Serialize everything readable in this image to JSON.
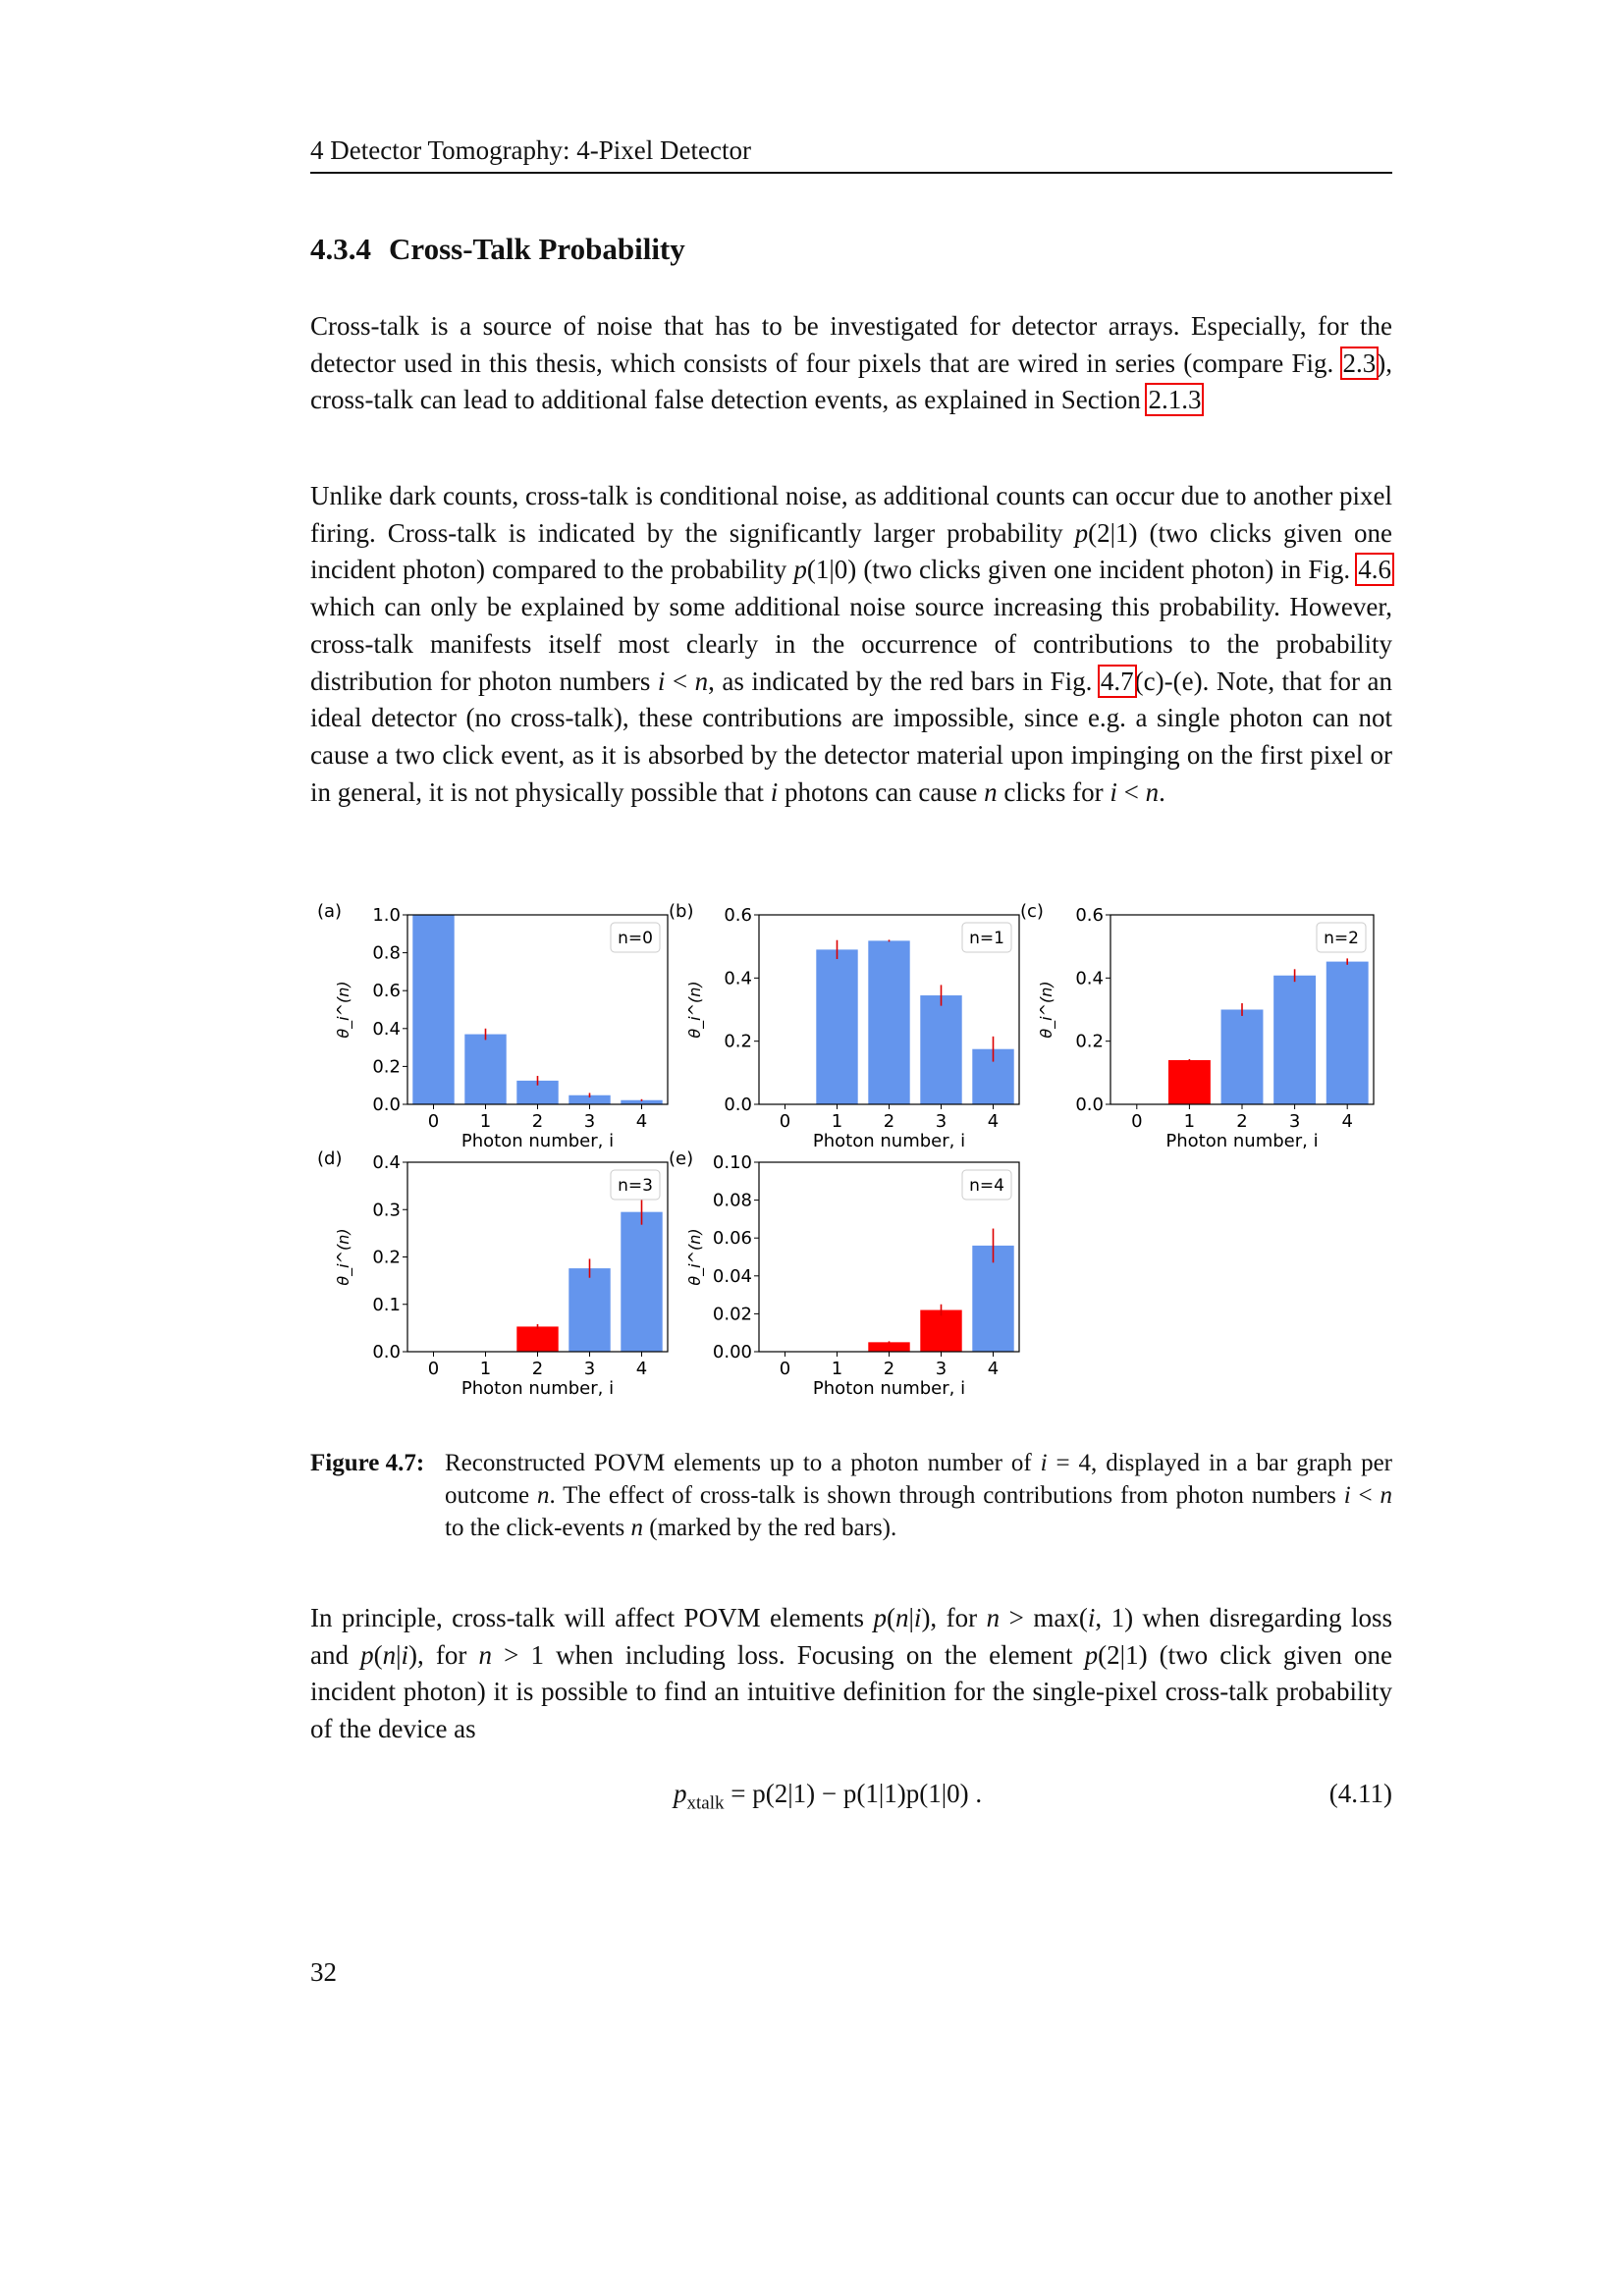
{
  "running_head": "4  Detector Tomography: 4-Pixel Detector",
  "section": {
    "number": "4.3.4",
    "title": "Cross-Talk Probability"
  },
  "paragraphs": [
    [
      {
        "t": "Cross-talk is a source of noise that has to be investigated for detector arrays. Especially, for the detector used in this thesis, which consists of four pixels that are wired in series (compare Fig. "
      },
      {
        "t": "2.3",
        "k": "ref"
      },
      {
        "t": "), cross-talk can lead to additional false detection events, as explained in Section "
      },
      {
        "t": "2.1.3",
        "k": "ref"
      }
    ],
    [
      {
        "t": "Unlike dark counts, cross-talk is conditional noise, as additional counts can occur due to another pixel firing. Cross-talk is indicated by the significantly larger probability "
      },
      {
        "t": "p",
        "k": "m"
      },
      {
        "t": "(2|1) (two clicks given one incident photon) compared to the probability "
      },
      {
        "t": "p",
        "k": "m"
      },
      {
        "t": "(1|0) (two clicks given one incident photon) in Fig. "
      },
      {
        "t": "4.6",
        "k": "ref"
      },
      {
        "t": " which can only be explained by some additional noise source increasing this probability. However, cross-talk manifests itself most clearly in the occurrence of contributions to the probability distribution for photon numbers "
      },
      {
        "t": "i",
        "k": "m"
      },
      {
        "t": " < "
      },
      {
        "t": "n",
        "k": "m"
      },
      {
        "t": ", as indicated by the red bars in Fig. "
      },
      {
        "t": "4.7",
        "k": "ref"
      },
      {
        "t": "(c)-(e). Note, that for an ideal detector (no cross-talk), these contributions are impossible, since e.g. a single photon can not cause a two click event, as it is absorbed by the detector material upon impinging on the first pixel or in general, it is not physically possible that "
      },
      {
        "t": "i",
        "k": "m"
      },
      {
        "t": " photons can cause "
      },
      {
        "t": "n",
        "k": "m"
      },
      {
        "t": " clicks for "
      },
      {
        "t": "i",
        "k": "m"
      },
      {
        "t": " < "
      },
      {
        "t": "n",
        "k": "m"
      },
      {
        "t": "."
      }
    ],
    [
      {
        "t": "In principle, cross-talk will affect POVM elements "
      },
      {
        "t": "p",
        "k": "m"
      },
      {
        "t": "("
      },
      {
        "t": "n",
        "k": "m"
      },
      {
        "t": "|"
      },
      {
        "t": "i",
        "k": "m"
      },
      {
        "t": "), for "
      },
      {
        "t": "n",
        "k": "m"
      },
      {
        "t": " > max("
      },
      {
        "t": "i",
        "k": "m"
      },
      {
        "t": ", 1) when disregarding loss and "
      },
      {
        "t": "p",
        "k": "m"
      },
      {
        "t": "("
      },
      {
        "t": "n",
        "k": "m"
      },
      {
        "t": "|"
      },
      {
        "t": "i",
        "k": "m"
      },
      {
        "t": "), for "
      },
      {
        "t": "n",
        "k": "m"
      },
      {
        "t": " > 1 when including loss. Focusing on the element "
      },
      {
        "t": "p",
        "k": "m"
      },
      {
        "t": "(2|1) (two click given one incident photon) it is possible to find an intuitive definition for the single-pixel cross-talk probability of the device as"
      }
    ]
  ],
  "caption": {
    "label": "Figure 4.7:",
    "segments": [
      {
        "t": "Reconstructed POVM elements up to a photon number of "
      },
      {
        "t": "i",
        "k": "m"
      },
      {
        "t": " = 4, displayed in a bar graph per outcome "
      },
      {
        "t": "n",
        "k": "m"
      },
      {
        "t": ". The effect of cross-talk is shown through contributions from photon numbers "
      },
      {
        "t": "i",
        "k": "m"
      },
      {
        "t": " < "
      },
      {
        "t": "n",
        "k": "m"
      },
      {
        "t": " to the click-events "
      },
      {
        "t": "n",
        "k": "m"
      },
      {
        "t": " (marked by the red bars)."
      }
    ]
  },
  "equation": {
    "lhs": "p",
    "sub": "xtalk",
    "rhs": " = p(2|1) − p(1|1)p(1|0) .",
    "number": "(4.11)"
  },
  "page_number": "32",
  "colors": {
    "normal_bar": "#6495ED",
    "crosstalk_bar": "#FF0000",
    "error_bar": "#DD0000",
    "ref_box": "#EE0000"
  },
  "chart_data": [
    {
      "type": "bar",
      "panel": "(a)",
      "legend": "n=0",
      "legend_position": "top-right",
      "xlabel": "Photon number, i",
      "ylabel": "θ_i^(n)",
      "categories": [
        "0",
        "1",
        "2",
        "3",
        "4"
      ],
      "values": [
        1.0,
        0.37,
        0.125,
        0.048,
        0.022
      ],
      "errors": [
        0,
        0.03,
        0.025,
        0.012,
        0.005
      ],
      "crosstalk": [
        false,
        false,
        false,
        false,
        false
      ],
      "ylim": [
        0,
        1.0
      ],
      "yticks": [
        "0.0",
        "0.2",
        "0.4",
        "0.6",
        "0.8",
        "1.0"
      ],
      "ytick_values": [
        0,
        0.2,
        0.4,
        0.6,
        0.8,
        1.0
      ]
    },
    {
      "type": "bar",
      "panel": "(b)",
      "legend": "n=1",
      "legend_position": "top-right",
      "xlabel": "Photon number, i",
      "ylabel": "θ_i^(n)",
      "categories": [
        "0",
        "1",
        "2",
        "3",
        "4"
      ],
      "values": [
        0,
        0.49,
        0.518,
        0.345,
        0.175
      ],
      "errors": [
        0,
        0.03,
        0.003,
        0.033,
        0.04
      ],
      "crosstalk": [
        false,
        false,
        false,
        false,
        false
      ],
      "ylim": [
        0,
        0.6
      ],
      "yticks": [
        "0.0",
        "0.2",
        "0.4",
        "0.6"
      ],
      "ytick_values": [
        0,
        0.2,
        0.4,
        0.6
      ]
    },
    {
      "type": "bar",
      "panel": "(c)",
      "legend": "n=2",
      "legend_position": "top-right",
      "xlabel": "Photon number, i",
      "ylabel": "θ_i^(n)",
      "categories": [
        "0",
        "1",
        "2",
        "3",
        "4"
      ],
      "values": [
        0,
        0.14,
        0.3,
        0.408,
        0.452
      ],
      "errors": [
        0,
        0.003,
        0.02,
        0.02,
        0.01
      ],
      "crosstalk": [
        false,
        true,
        false,
        false,
        false
      ],
      "ylim": [
        0,
        0.6
      ],
      "yticks": [
        "0.0",
        "0.2",
        "0.4",
        "0.6"
      ],
      "ytick_values": [
        0,
        0.2,
        0.4,
        0.6
      ]
    },
    {
      "type": "bar",
      "panel": "(d)",
      "legend": "n=3",
      "legend_position": "top-right",
      "xlabel": "Photon number, i",
      "ylabel": "θ_i^(n)",
      "categories": [
        "0",
        "1",
        "2",
        "3",
        "4"
      ],
      "values": [
        0,
        0,
        0.053,
        0.176,
        0.295
      ],
      "errors": [
        0,
        0,
        0.005,
        0.02,
        0.027
      ],
      "crosstalk": [
        false,
        false,
        true,
        false,
        false
      ],
      "ylim": [
        0,
        0.4
      ],
      "yticks": [
        "0.0",
        "0.1",
        "0.2",
        "0.3",
        "0.4"
      ],
      "ytick_values": [
        0,
        0.1,
        0.2,
        0.3,
        0.4
      ]
    },
    {
      "type": "bar",
      "panel": "(e)",
      "legend": "n=4",
      "legend_position": "top-right",
      "xlabel": "Photon number, i",
      "ylabel": "θ_i^(n)",
      "categories": [
        "0",
        "1",
        "2",
        "3",
        "4"
      ],
      "values": [
        0,
        0,
        0.005,
        0.022,
        0.056
      ],
      "errors": [
        0,
        0,
        0.0005,
        0.003,
        0.009
      ],
      "crosstalk": [
        false,
        false,
        true,
        true,
        false
      ],
      "ylim": [
        0,
        0.1
      ],
      "yticks": [
        "0.00",
        "0.02",
        "0.04",
        "0.06",
        "0.08",
        "0.10"
      ],
      "ytick_values": [
        0,
        0.02,
        0.04,
        0.06,
        0.08,
        0.1
      ]
    }
  ]
}
